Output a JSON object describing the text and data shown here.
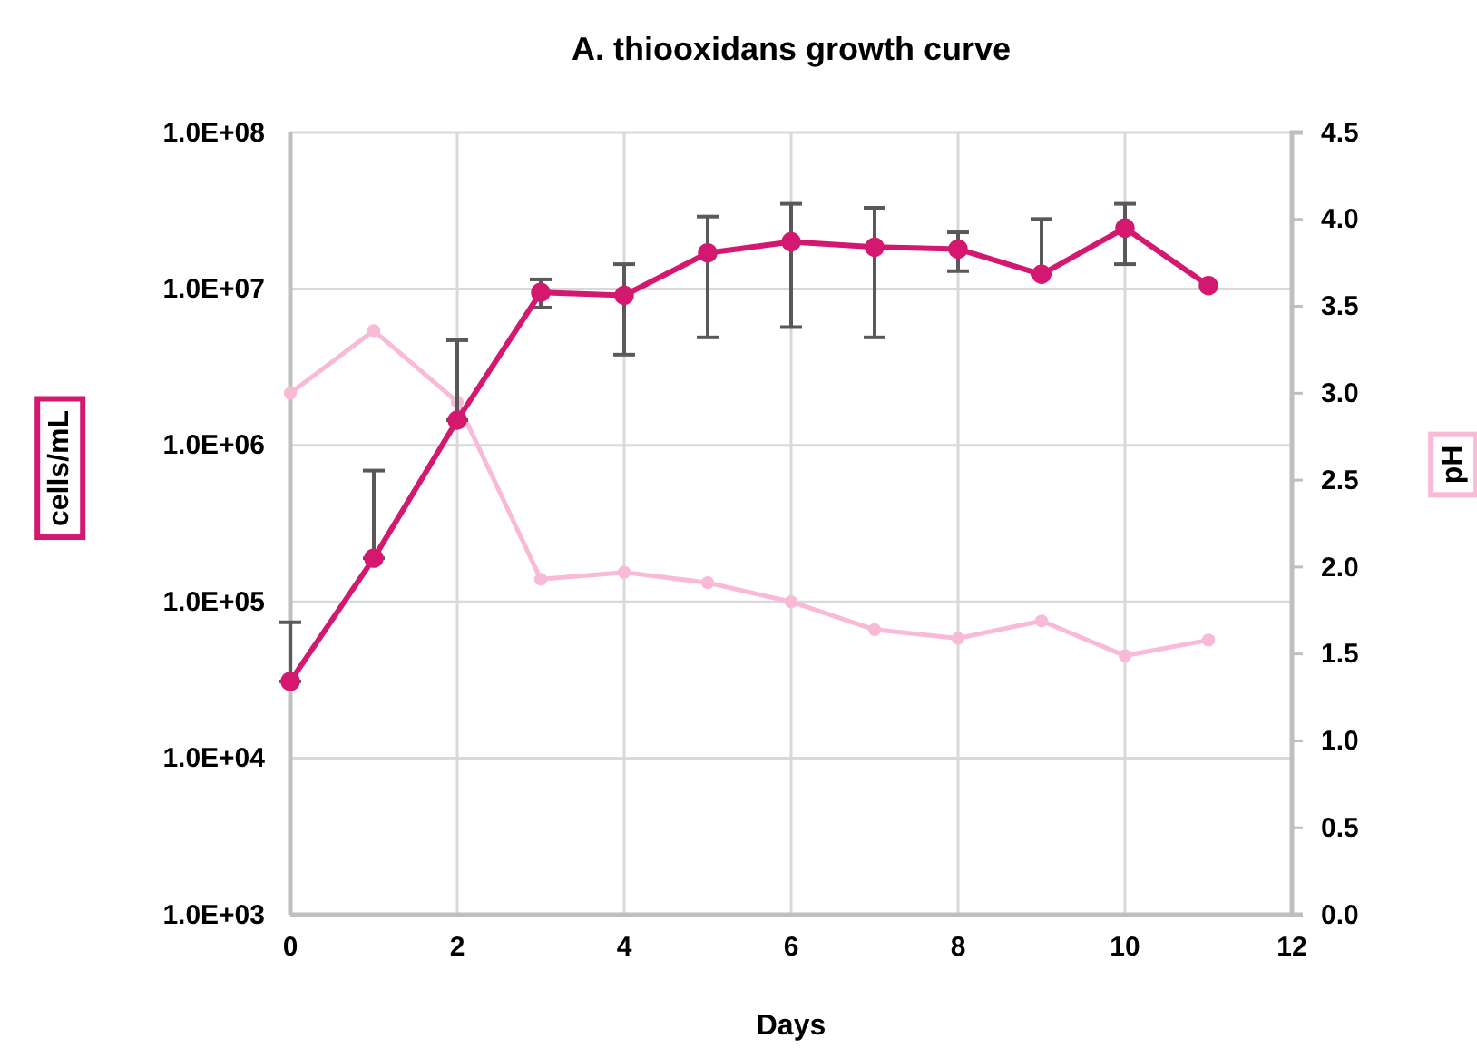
{
  "chart_data": {
    "type": "line",
    "title": "A. thiooxidans growth curve",
    "xlabel": "Days",
    "ylabel": "cells/mL",
    "y2label": "pH",
    "x": [
      0,
      1,
      2,
      3,
      4,
      5,
      6,
      7,
      8,
      9,
      10,
      11
    ],
    "xlim": [
      0,
      12
    ],
    "xticks": [
      0,
      2,
      4,
      6,
      8,
      10,
      12
    ],
    "ylim": [
      1000,
      100000000
    ],
    "log": "y",
    "yticks": [
      {
        "value": 1000,
        "label": "1.0E+03"
      },
      {
        "value": 10000,
        "label": "1.0E+04"
      },
      {
        "value": 100000,
        "label": "1.0E+05"
      },
      {
        "value": 1000000,
        "label": "1.0E+06"
      },
      {
        "value": 10000000,
        "label": "1.0E+07"
      },
      {
        "value": 100000000,
        "label": "1.0E+08"
      }
    ],
    "y2lim": [
      0,
      4.5
    ],
    "y2ticks": [
      {
        "value": 0,
        "label": "0.0"
      },
      0.5,
      {
        "value": 1,
        "label": "1.0"
      },
      1.5,
      {
        "value": 2,
        "label": "2.0"
      },
      2.5,
      {
        "value": 3,
        "label": "3.0"
      },
      3.5,
      {
        "value": 4,
        "label": "4.0"
      },
      4.5
    ],
    "grid": true,
    "marker": "circle",
    "line_style": "solid",
    "series": [
      {
        "color": "#d4186f",
        "values": [
          31000,
          190000,
          1450000,
          9500000,
          9100000,
          17000000,
          20000000,
          18500000,
          18000000,
          12400000,
          24500000,
          10500000
        ],
        "errors": [
          [
            31000,
            74000
          ],
          [
            190000,
            690000
          ],
          [
            1450000,
            4700000
          ],
          [
            7600000,
            11500000
          ],
          [
            3800000,
            14400000
          ],
          [
            4900000,
            29000000
          ],
          [
            5700000,
            35000000
          ],
          [
            4900000,
            33000000
          ],
          [
            13000000,
            23000000
          ],
          [
            12400000,
            28000000
          ],
          [
            14400000,
            35000000
          ],
          null
        ]
      },
      {
        "color": "#f9bad8",
        "axis": "y2",
        "values": [
          3.0,
          3.36,
          2.95,
          1.93,
          1.97,
          1.91,
          1.8,
          1.64,
          1.59,
          1.69,
          1.49,
          1.58
        ]
      }
    ]
  }
}
